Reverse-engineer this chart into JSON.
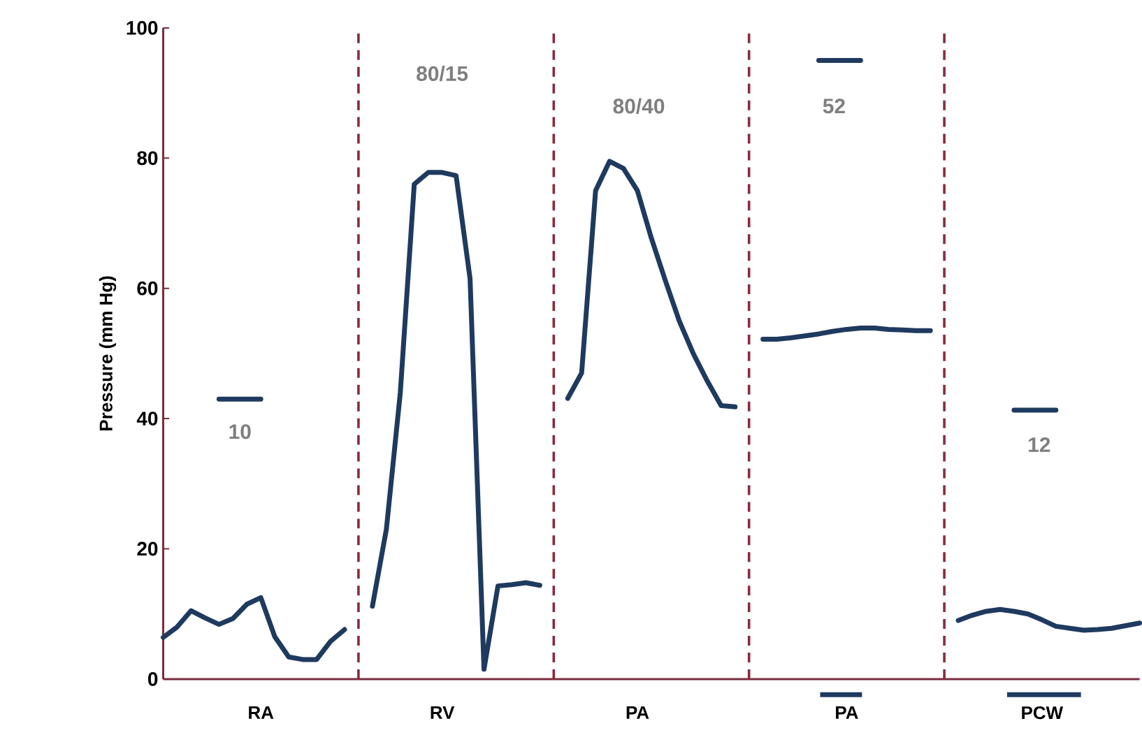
{
  "chart_data": {
    "type": "line",
    "ylabel": "Pressure (mm Hg)",
    "categories": [
      null,
      null,
      null,
      null,
      null,
      null,
      null,
      "RA",
      null,
      null,
      null,
      null,
      null,
      null,
      null,
      null,
      null,
      null,
      null,
      null,
      "RV",
      null,
      null,
      null,
      null,
      null,
      null,
      null,
      null,
      null,
      null,
      null,
      null,
      null,
      "PA",
      null,
      null,
      null,
      null,
      null,
      null,
      null,
      null,
      null,
      null,
      null,
      null,
      null,
      null,
      "PA",
      null,
      null,
      null,
      null,
      null,
      null,
      null,
      null,
      null,
      null,
      null,
      null,
      null,
      "PCW",
      null,
      null,
      null,
      null,
      null,
      null,
      null
    ],
    "ylim": [
      0,
      100
    ],
    "yticks": [
      0,
      20,
      40,
      60,
      80,
      100
    ],
    "series": [
      {
        "color": "#1f3a5f",
        "values": [
          6.4,
          8.0,
          10.5,
          9.4,
          8.4,
          9.3,
          11.5,
          12.5,
          6.5,
          3.4,
          3.0,
          3.0,
          5.8,
          7.6,
          null,
          11.2,
          23.0,
          44,
          76,
          77.8,
          77.8,
          77.3,
          61.5,
          1.5,
          14.3,
          14.5,
          14.8,
          14.4,
          null,
          43.1,
          47,
          75,
          79.5,
          78.4,
          75,
          67.7,
          61.2,
          55,
          50,
          45.8,
          42,
          41.8,
          null,
          52.2,
          52.2,
          52.4,
          52.7,
          53.0,
          53.4,
          53.7,
          53.9,
          53.9,
          53.7,
          53.6,
          53.5,
          53.5,
          null,
          9.0,
          9.8,
          10.4,
          10.7,
          10.4,
          10.0,
          9.1,
          8.1,
          7.8,
          7.5,
          7.6,
          7.8,
          8.2,
          8.6
        ]
      },
      {
        "color": "#1f3a5f",
        "values": [
          null,
          null,
          null,
          null,
          43,
          43,
          43,
          43,
          null,
          null,
          null,
          null,
          null,
          null,
          null,
          null,
          null,
          null,
          null,
          null,
          null,
          null,
          null,
          null,
          null,
          null,
          null,
          null,
          null,
          null,
          null,
          null,
          null,
          null,
          null,
          null,
          null,
          null,
          null,
          null,
          null,
          null,
          null,
          null,
          null,
          null,
          null,
          95,
          95,
          95,
          95,
          null,
          null,
          null,
          null,
          null,
          null,
          null,
          null,
          null,
          null,
          41.3,
          41.3,
          41.3,
          41.3,
          null,
          null,
          null,
          null,
          null,
          null
        ]
      }
    ],
    "annotations": [
      "80/15",
      "80/40",
      "52",
      "10",
      "12"
    ]
  }
}
